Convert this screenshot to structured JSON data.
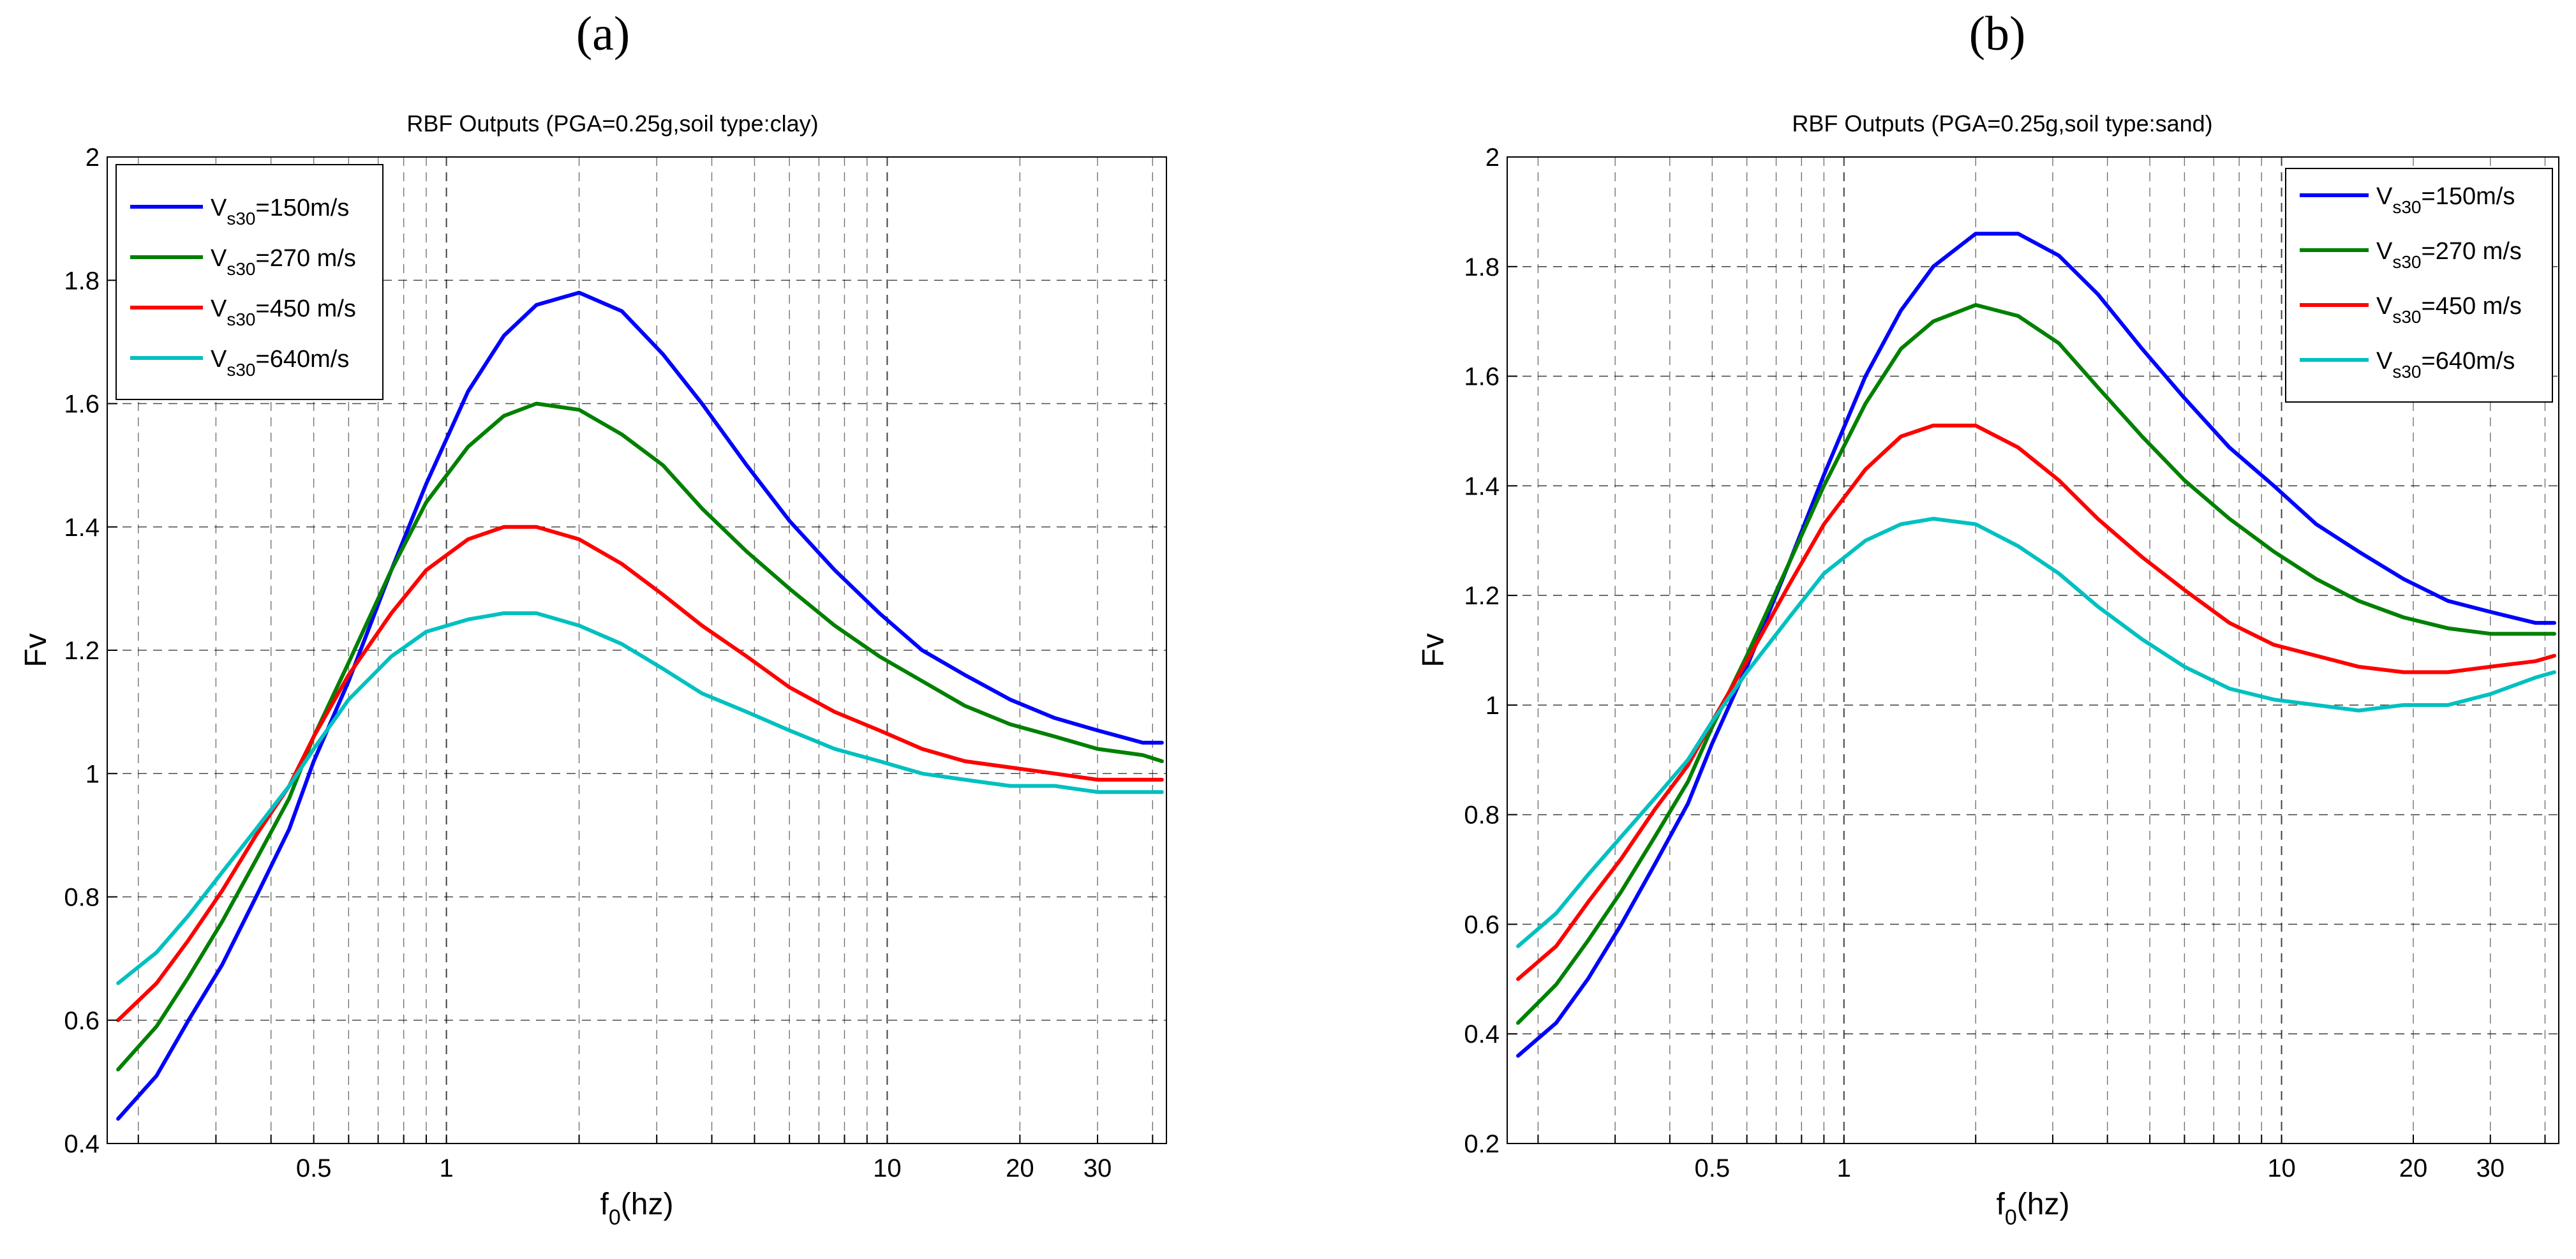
{
  "chart_data": [
    {
      "panel": "(a)",
      "type": "line",
      "title": "RBF Outputs (PGA=0.25g,soil type:clay)",
      "xlabel": "f",
      "xlabel_sub": "0",
      "xlabel_suffix": "(hz)",
      "ylabel": "Fv",
      "xscale": "log",
      "xlim": [
        0.17,
        43
      ],
      "ylim": [
        0.4,
        2
      ],
      "xticks": [
        0.5,
        1,
        10,
        20,
        30
      ],
      "xtick_labels": [
        "0.5",
        "1",
        "10",
        "20",
        "30"
      ],
      "yticks": [
        0.4,
        0.6,
        0.8,
        1,
        1.2,
        1.4,
        1.6,
        1.8,
        2
      ],
      "ytick_labels": [
        "0.4",
        "0.6",
        "0.8",
        "1",
        "1.2",
        "1.4",
        "1.6",
        "1.8",
        "2"
      ],
      "grid": true,
      "legend_position": "top-left",
      "series": [
        {
          "name": "V",
          "sub": "s30",
          "suffix": "=150m/s",
          "color": "#0000ff",
          "x": [
            0.18,
            0.22,
            0.26,
            0.31,
            0.37,
            0.44,
            0.5,
            0.6,
            0.75,
            0.9,
            1.12,
            1.35,
            1.6,
            2.0,
            2.5,
            3.1,
            3.8,
            4.8,
            6.0,
            7.6,
            9.6,
            12,
            15,
            19,
            24,
            30,
            38,
            42
          ],
          "y": [
            0.44,
            0.51,
            0.6,
            0.69,
            0.8,
            0.91,
            1.02,
            1.15,
            1.33,
            1.47,
            1.62,
            1.71,
            1.76,
            1.78,
            1.75,
            1.68,
            1.6,
            1.5,
            1.41,
            1.33,
            1.26,
            1.2,
            1.16,
            1.12,
            1.09,
            1.07,
            1.05,
            1.05
          ]
        },
        {
          "name": "V",
          "sub": "s30",
          "suffix": "=270 m/s",
          "color": "#008000",
          "x": [
            0.18,
            0.22,
            0.26,
            0.31,
            0.37,
            0.44,
            0.5,
            0.6,
            0.75,
            0.9,
            1.12,
            1.35,
            1.6,
            2.0,
            2.5,
            3.1,
            3.8,
            4.8,
            6.0,
            7.6,
            9.6,
            12,
            15,
            19,
            24,
            30,
            38,
            42
          ],
          "y": [
            0.52,
            0.59,
            0.67,
            0.76,
            0.86,
            0.96,
            1.06,
            1.18,
            1.33,
            1.44,
            1.53,
            1.58,
            1.6,
            1.59,
            1.55,
            1.5,
            1.43,
            1.36,
            1.3,
            1.24,
            1.19,
            1.15,
            1.11,
            1.08,
            1.06,
            1.04,
            1.03,
            1.02
          ]
        },
        {
          "name": "V",
          "sub": "s30",
          "suffix": "=450 m/s",
          "color": "#ff0000",
          "x": [
            0.18,
            0.22,
            0.26,
            0.31,
            0.37,
            0.44,
            0.5,
            0.6,
            0.75,
            0.9,
            1.12,
            1.35,
            1.6,
            2.0,
            2.5,
            3.1,
            3.8,
            4.8,
            6.0,
            7.6,
            9.6,
            12,
            15,
            19,
            24,
            30,
            38,
            42
          ],
          "y": [
            0.6,
            0.66,
            0.73,
            0.81,
            0.9,
            0.98,
            1.06,
            1.16,
            1.26,
            1.33,
            1.38,
            1.4,
            1.4,
            1.38,
            1.34,
            1.29,
            1.24,
            1.19,
            1.14,
            1.1,
            1.07,
            1.04,
            1.02,
            1.01,
            1.0,
            0.99,
            0.99,
            0.99
          ]
        },
        {
          "name": "V",
          "sub": "s30",
          "suffix": "=640m/s",
          "color": "#00c0c0",
          "x": [
            0.18,
            0.22,
            0.26,
            0.31,
            0.37,
            0.44,
            0.5,
            0.6,
            0.75,
            0.9,
            1.12,
            1.35,
            1.6,
            2.0,
            2.5,
            3.1,
            3.8,
            4.8,
            6.0,
            7.6,
            9.6,
            12,
            15,
            19,
            24,
            30,
            38,
            42
          ],
          "y": [
            0.66,
            0.71,
            0.77,
            0.84,
            0.91,
            0.98,
            1.04,
            1.12,
            1.19,
            1.23,
            1.25,
            1.26,
            1.26,
            1.24,
            1.21,
            1.17,
            1.13,
            1.1,
            1.07,
            1.04,
            1.02,
            1.0,
            0.99,
            0.98,
            0.98,
            0.97,
            0.97,
            0.97
          ]
        }
      ]
    },
    {
      "panel": "(b)",
      "type": "line",
      "title": "RBF Outputs (PGA=0.25g,soil type:sand)",
      "xlabel": "f",
      "xlabel_sub": "0",
      "xlabel_suffix": "(hz)",
      "ylabel": "Fv",
      "xscale": "log",
      "xlim": [
        0.17,
        43
      ],
      "ylim": [
        0.2,
        2
      ],
      "xticks": [
        0.5,
        1,
        10,
        20,
        30
      ],
      "xtick_labels": [
        "0.5",
        "1",
        "10",
        "20",
        "30"
      ],
      "yticks": [
        0.2,
        0.4,
        0.6,
        0.8,
        1,
        1.2,
        1.4,
        1.6,
        1.8,
        2
      ],
      "ytick_labels": [
        "0.2",
        "0.4",
        "0.6",
        "0.8",
        "1",
        "1.2",
        "1.4",
        "1.6",
        "1.8",
        "2"
      ],
      "grid": true,
      "legend_position": "top-right",
      "series": [
        {
          "name": "V",
          "sub": "s30",
          "suffix": "=150m/s",
          "color": "#0000ff",
          "x": [
            0.18,
            0.22,
            0.26,
            0.31,
            0.37,
            0.44,
            0.5,
            0.6,
            0.75,
            0.9,
            1.12,
            1.35,
            1.6,
            2.0,
            2.5,
            3.1,
            3.8,
            4.8,
            6.0,
            7.6,
            9.6,
            12,
            15,
            19,
            24,
            30,
            38,
            42
          ],
          "y": [
            0.36,
            0.42,
            0.5,
            0.6,
            0.71,
            0.82,
            0.93,
            1.07,
            1.26,
            1.42,
            1.6,
            1.72,
            1.8,
            1.86,
            1.86,
            1.82,
            1.75,
            1.65,
            1.56,
            1.47,
            1.4,
            1.33,
            1.28,
            1.23,
            1.19,
            1.17,
            1.15,
            1.15
          ]
        },
        {
          "name": "V",
          "sub": "s30",
          "suffix": "=270 m/s",
          "color": "#008000",
          "x": [
            0.18,
            0.22,
            0.26,
            0.31,
            0.37,
            0.44,
            0.5,
            0.6,
            0.75,
            0.9,
            1.12,
            1.35,
            1.6,
            2.0,
            2.5,
            3.1,
            3.8,
            4.8,
            6.0,
            7.6,
            9.6,
            12,
            15,
            19,
            24,
            30,
            38,
            42
          ],
          "y": [
            0.42,
            0.49,
            0.57,
            0.66,
            0.76,
            0.86,
            0.96,
            1.09,
            1.26,
            1.4,
            1.55,
            1.65,
            1.7,
            1.73,
            1.71,
            1.66,
            1.58,
            1.49,
            1.41,
            1.34,
            1.28,
            1.23,
            1.19,
            1.16,
            1.14,
            1.13,
            1.13,
            1.13
          ]
        },
        {
          "name": "V",
          "sub": "s30",
          "suffix": "=450 m/s",
          "color": "#ff0000",
          "x": [
            0.18,
            0.22,
            0.26,
            0.31,
            0.37,
            0.44,
            0.5,
            0.6,
            0.75,
            0.9,
            1.12,
            1.35,
            1.6,
            2.0,
            2.5,
            3.1,
            3.8,
            4.8,
            6.0,
            7.6,
            9.6,
            12,
            15,
            19,
            24,
            30,
            38,
            42
          ],
          "y": [
            0.5,
            0.56,
            0.64,
            0.72,
            0.81,
            0.89,
            0.97,
            1.08,
            1.22,
            1.33,
            1.43,
            1.49,
            1.51,
            1.51,
            1.47,
            1.41,
            1.34,
            1.27,
            1.21,
            1.15,
            1.11,
            1.09,
            1.07,
            1.06,
            1.06,
            1.07,
            1.08,
            1.09
          ]
        },
        {
          "name": "V",
          "sub": "s30",
          "suffix": "=640m/s",
          "color": "#00c0c0",
          "x": [
            0.18,
            0.22,
            0.26,
            0.31,
            0.37,
            0.44,
            0.5,
            0.6,
            0.75,
            0.9,
            1.12,
            1.35,
            1.6,
            2.0,
            2.5,
            3.1,
            3.8,
            4.8,
            6.0,
            7.6,
            9.6,
            12,
            15,
            19,
            24,
            30,
            38,
            42
          ],
          "y": [
            0.56,
            0.62,
            0.69,
            0.76,
            0.83,
            0.9,
            0.97,
            1.06,
            1.16,
            1.24,
            1.3,
            1.33,
            1.34,
            1.33,
            1.29,
            1.24,
            1.18,
            1.12,
            1.07,
            1.03,
            1.01,
            1.0,
            0.99,
            1.0,
            1.0,
            1.02,
            1.05,
            1.06
          ]
        }
      ]
    }
  ]
}
